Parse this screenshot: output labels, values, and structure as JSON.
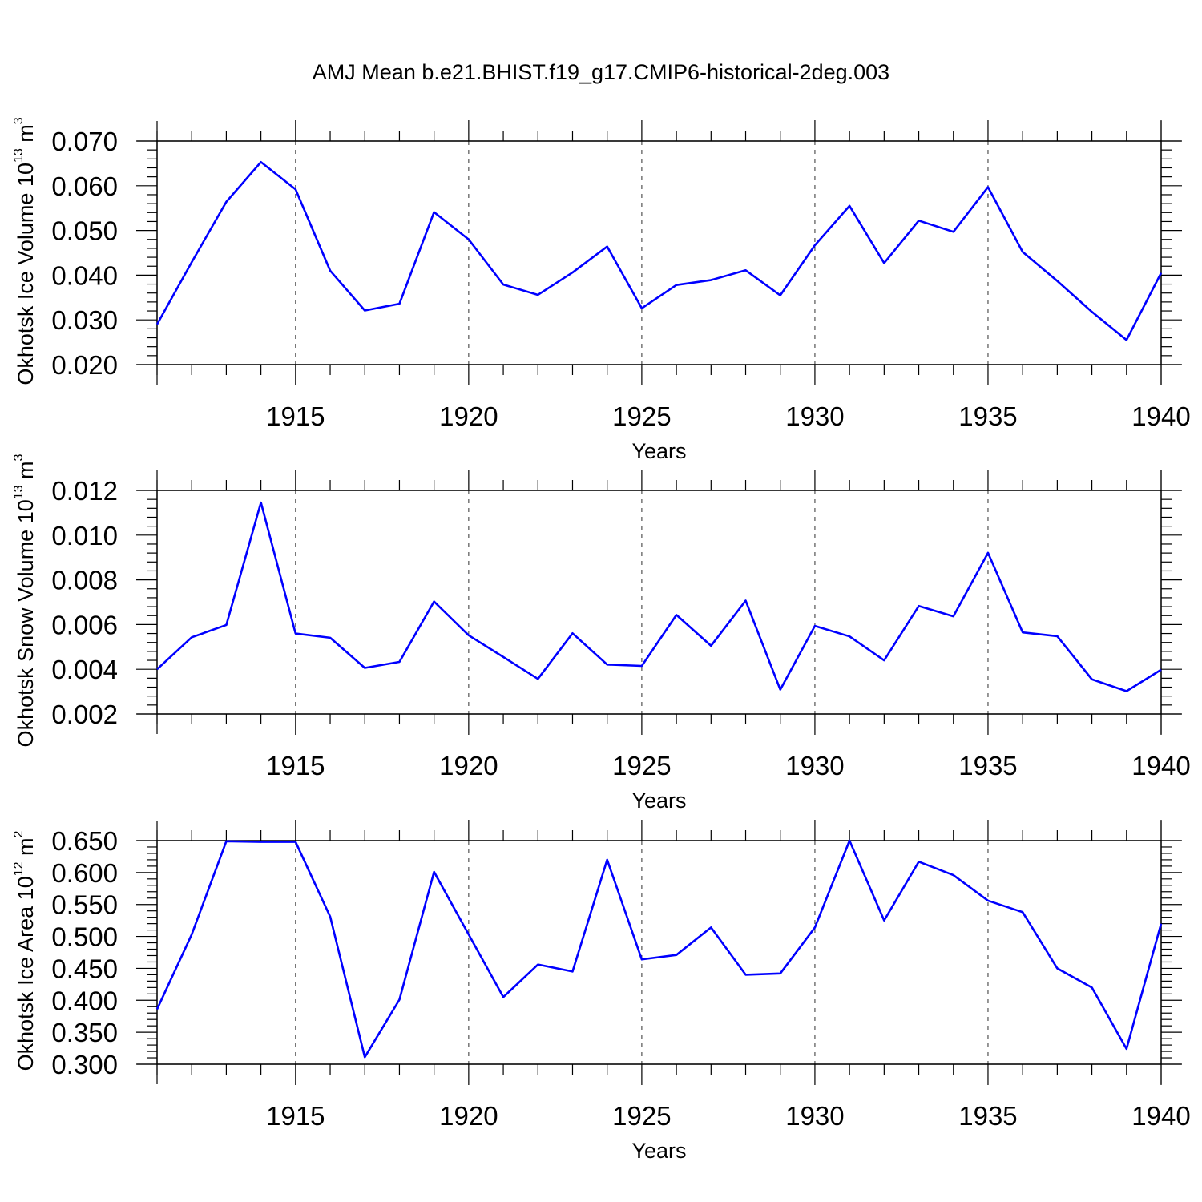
{
  "figure_title": "AMJ Mean b.e21.BHIST.f19_g17.CMIP6-historical-2deg.003",
  "colors": {
    "line": "#0000ff",
    "axes": "#000000",
    "grid": "#444444"
  },
  "chart_data": [
    {
      "type": "line",
      "xlabel": "Years",
      "ylabel": {
        "prefix": "Okhotsk Ice Volume 10",
        "exp1": "13",
        "mid": " m",
        "exp2": "3"
      },
      "xlim": [
        1911,
        1940
      ],
      "ylim": [
        0.02,
        0.07
      ],
      "xticks": [
        "1915",
        "1920",
        "1925",
        "1930",
        "1935",
        "1940"
      ],
      "xtick_values": [
        1915,
        1920,
        1925,
        1930,
        1935,
        1940
      ],
      "yticks": [
        "0.020",
        "0.030",
        "0.040",
        "0.050",
        "0.060",
        "0.070"
      ],
      "ytick_values": [
        0.02,
        0.03,
        0.04,
        0.05,
        0.06,
        0.07
      ],
      "grid": "vertical dashed at major x ticks",
      "x": [
        1911,
        1912,
        1913,
        1914,
        1915,
        1916,
        1917,
        1918,
        1919,
        1920,
        1921,
        1922,
        1923,
        1924,
        1925,
        1926,
        1927,
        1928,
        1929,
        1930,
        1931,
        1932,
        1933,
        1934,
        1935,
        1936,
        1937,
        1938,
        1939,
        1940
      ],
      "values": [
        0.029,
        0.0429,
        0.0564,
        0.0653,
        0.0592,
        0.041,
        0.0321,
        0.0336,
        0.0541,
        0.048,
        0.0379,
        0.0356,
        0.0406,
        0.0464,
        0.0326,
        0.0378,
        0.0389,
        0.0411,
        0.0355,
        0.0467,
        0.0555,
        0.0427,
        0.0522,
        0.0497,
        0.0597,
        0.0452,
        0.0387,
        0.0318,
        0.0255,
        0.0405
      ]
    },
    {
      "type": "line",
      "xlabel": "Years",
      "ylabel": {
        "prefix": "Okhotsk Snow Volume 10",
        "exp1": "13",
        "mid": " m",
        "exp2": "3"
      },
      "xlim": [
        1911,
        1940
      ],
      "ylim": [
        0.002,
        0.012
      ],
      "xticks": [
        "1915",
        "1920",
        "1925",
        "1930",
        "1935",
        "1940"
      ],
      "xtick_values": [
        1915,
        1920,
        1925,
        1930,
        1935,
        1940
      ],
      "yticks": [
        "0.002",
        "0.004",
        "0.006",
        "0.008",
        "0.010",
        "0.012"
      ],
      "ytick_values": [
        0.002,
        0.004,
        0.006,
        0.008,
        0.01,
        0.012
      ],
      "grid": "vertical dashed at major x ticks",
      "x": [
        1911,
        1912,
        1913,
        1914,
        1915,
        1916,
        1917,
        1918,
        1919,
        1920,
        1921,
        1922,
        1923,
        1924,
        1925,
        1926,
        1927,
        1928,
        1929,
        1930,
        1931,
        1932,
        1933,
        1934,
        1935,
        1936,
        1937,
        1938,
        1939,
        1940
      ],
      "values": [
        0.004,
        0.00543,
        0.00598,
        0.01146,
        0.0056,
        0.00541,
        0.00406,
        0.00433,
        0.00703,
        0.00552,
        0.00455,
        0.00357,
        0.00561,
        0.00421,
        0.00415,
        0.00643,
        0.00505,
        0.00707,
        0.00309,
        0.00594,
        0.00547,
        0.0044,
        0.00683,
        0.00637,
        0.00921,
        0.00565,
        0.00548,
        0.00355,
        0.00302,
        0.00398
      ]
    },
    {
      "type": "line",
      "xlabel": "Years",
      "ylabel": {
        "prefix": "Okhotsk Ice Area 10",
        "exp1": "12",
        "mid": " m",
        "exp2": "2"
      },
      "xlim": [
        1911,
        1940
      ],
      "ylim": [
        0.3,
        0.65
      ],
      "xticks": [
        "1915",
        "1920",
        "1925",
        "1930",
        "1935",
        "1940"
      ],
      "xtick_values": [
        1915,
        1920,
        1925,
        1930,
        1935,
        1940
      ],
      "yticks": [
        "0.300",
        "0.350",
        "0.400",
        "0.450",
        "0.500",
        "0.550",
        "0.600",
        "0.650"
      ],
      "ytick_values": [
        0.3,
        0.35,
        0.4,
        0.45,
        0.5,
        0.55,
        0.6,
        0.65
      ],
      "grid": "vertical dashed at major x ticks",
      "x": [
        1911,
        1912,
        1913,
        1914,
        1915,
        1916,
        1917,
        1918,
        1919,
        1920,
        1921,
        1922,
        1923,
        1924,
        1925,
        1926,
        1927,
        1928,
        1929,
        1930,
        1931,
        1932,
        1933,
        1934,
        1935,
        1936,
        1937,
        1938,
        1939,
        1940
      ],
      "values": [
        0.386,
        0.503,
        0.649,
        0.648,
        0.648,
        0.531,
        0.311,
        0.401,
        0.601,
        0.503,
        0.405,
        0.456,
        0.445,
        0.62,
        0.464,
        0.471,
        0.514,
        0.44,
        0.442,
        0.514,
        0.65,
        0.525,
        0.617,
        0.596,
        0.556,
        0.538,
        0.45,
        0.42,
        0.324,
        0.52
      ]
    }
  ]
}
